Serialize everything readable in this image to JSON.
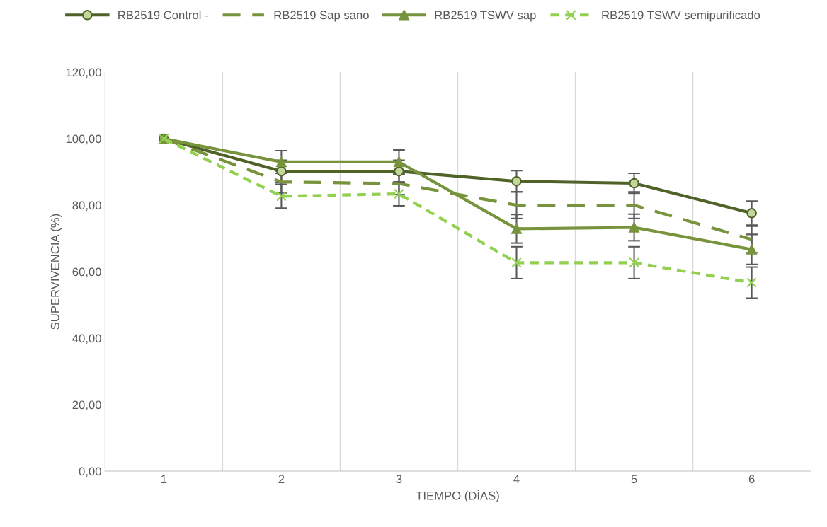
{
  "chart_data": {
    "type": "line",
    "xlabel": "TIEMPO (DÍAS)",
    "ylabel": "SUPERVIVENCIA (%)",
    "categories": [
      "1",
      "2",
      "3",
      "4",
      "5",
      "6"
    ],
    "series": [
      {
        "name": "RB2519 Control -",
        "color": "#4f6228",
        "marker": "circle",
        "line_style": "solid",
        "values": [
          100,
          90.2,
          90.2,
          87.2,
          86.6,
          77.6
        ],
        "errors": [
          null,
          3.3,
          3.3,
          3.2,
          3.0,
          3.6
        ]
      },
      {
        "name": "RB2519 Sap sano",
        "color": "#77933c",
        "marker": "none",
        "line_style": "dashed",
        "values": [
          100,
          87,
          86.5,
          80,
          80,
          69.7
        ],
        "errors": [
          null,
          3.3,
          3.3,
          4,
          4,
          4
        ]
      },
      {
        "name": "RB2519 TSWV sap",
        "color": "#77933c",
        "marker": "triangle",
        "line_style": "solid",
        "values": [
          100,
          93,
          93,
          72.9,
          73.3,
          66.7
        ],
        "errors": [
          null,
          3.4,
          3.6,
          4.3,
          4.0,
          4.5
        ]
      },
      {
        "name": "RB2519 TSWV semipurificado",
        "color": "#92d050",
        "marker": "cross",
        "line_style": "dotted",
        "values": [
          100,
          82.7,
          83.4,
          62.7,
          62.7,
          56.7
        ],
        "errors": [
          null,
          3.6,
          3.6,
          4.8,
          4.8,
          4.7
        ]
      }
    ],
    "ylim": [
      0,
      120
    ],
    "yticks": [
      {
        "value": 0,
        "label": "0,00"
      },
      {
        "value": 20,
        "label": "20,00"
      },
      {
        "value": 40,
        "label": "40,00"
      },
      {
        "value": 60,
        "label": "60,00"
      },
      {
        "value": 80,
        "label": "80,00"
      },
      {
        "value": 100,
        "label": "100,00"
      },
      {
        "value": 120,
        "label": "120,00"
      }
    ],
    "grid": "x",
    "legend": "top"
  }
}
